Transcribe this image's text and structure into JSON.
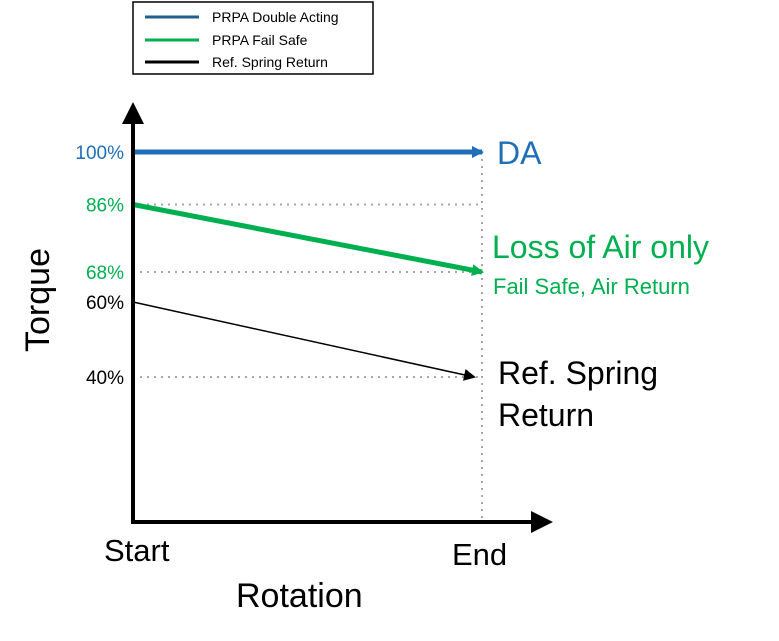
{
  "chart_data": {
    "type": "line",
    "title": "",
    "xlabel": "Rotation",
    "ylabel": "Torque",
    "x_categories": [
      "Start",
      "End"
    ],
    "ylim": [
      0,
      100
    ],
    "y_ticks": [
      "100%",
      "86%",
      "68%",
      "60%",
      "40%"
    ],
    "grid": "dotted reference lines at series values",
    "legend": "top-left",
    "legend_entries": [
      "PRPA Double Acting",
      "PRPA Fail Safe",
      "Ref. Spring Return"
    ],
    "series": [
      {
        "name": "PRPA Double Acting",
        "color": "#1f6fb8",
        "values": [
          100,
          100
        ],
        "annotation": "DA",
        "annotation_sub": ""
      },
      {
        "name": "PRPA Fail Safe",
        "color": "#00b050",
        "values": [
          86,
          68
        ],
        "annotation": "Loss of Air only",
        "annotation_sub": "Fail Safe, Air Return"
      },
      {
        "name": "Ref. Spring Return",
        "color": "#000000",
        "values": [
          60,
          40
        ],
        "annotation": "Ref. Spring",
        "annotation_sub": "Return"
      }
    ],
    "legend_colors": [
      "#1f5f8f",
      "#00b050",
      "#000000"
    ],
    "tick_colors": [
      "#1f6fb8",
      "#00b050",
      "#00b050",
      "#000000",
      "#000000"
    ]
  }
}
